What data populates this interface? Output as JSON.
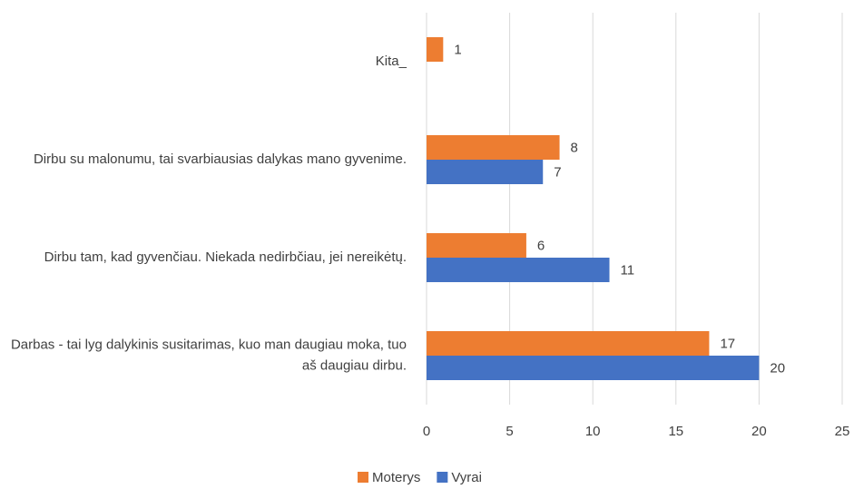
{
  "chart_data": {
    "type": "bar",
    "orientation": "horizontal",
    "categories": [
      "Darbas - tai lyg dalykinis susitarimas, kuo man daugiau moka, tuo aš daugiau dirbu.",
      "Dirbu tam, kad gyvenčiau. Niekada nedirbčiau, jei nereikėtų.",
      "Dirbu su malonumu, tai svarbiausias dalykas mano gyvenime.",
      "Kita_"
    ],
    "series": [
      {
        "name": "Moterys",
        "color": "#ed7d31",
        "values": [
          17,
          6,
          8,
          1
        ]
      },
      {
        "name": "Vyrai",
        "color": "#4472c4",
        "values": [
          20,
          11,
          7,
          null
        ]
      }
    ],
    "xlim": [
      0,
      25
    ],
    "xticks": [
      0,
      5,
      10,
      15,
      20,
      25
    ],
    "grid": true,
    "legend": "bottom"
  }
}
